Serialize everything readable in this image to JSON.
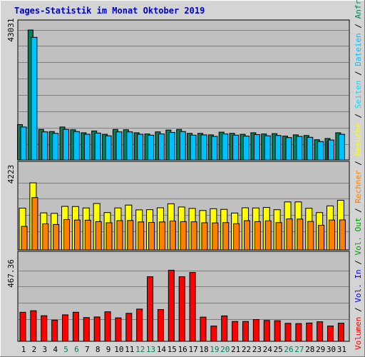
{
  "title": "Tages-Statistik im Monat Oktober 2019",
  "colors": {
    "title": "#0000c8",
    "plot_bg": "#c0c0c0",
    "grid": "#808080",
    "hits": "#00805c",
    "files": "#00c0ff",
    "pages": "#00e0ff",
    "visits": "#ffff00",
    "sites": "#ff8000",
    "kbytes": "#ff0000",
    "vol_in": "#0000ff",
    "vol_out": "#00a000",
    "weekend": "#00805c",
    "weekday": "#000000"
  },
  "chart_data": [
    {
      "type": "bar",
      "name": "hits-files-pages",
      "y_max_label": "43031",
      "ylim": [
        0,
        43031
      ],
      "x": [
        1,
        2,
        3,
        4,
        5,
        6,
        7,
        8,
        9,
        10,
        11,
        12,
        13,
        14,
        15,
        16,
        17,
        18,
        19,
        20,
        21,
        22,
        23,
        24,
        25,
        26,
        27,
        28,
        29,
        30,
        31
      ],
      "series": [
        {
          "name": "Anfragen",
          "values": [
            11700,
            43031,
            10100,
            9400,
            10900,
            10000,
            9000,
            9600,
            8500,
            10100,
            10000,
            9000,
            8600,
            9300,
            9900,
            10100,
            8800,
            8800,
            8300,
            9200,
            8800,
            8500,
            9000,
            8600,
            8700,
            7900,
            8300,
            8100,
            6700,
            7100,
            9000
          ]
        },
        {
          "name": "Dateien",
          "values": [
            10900,
            40600,
            9300,
            8800,
            10100,
            9400,
            8500,
            8900,
            8000,
            9300,
            9300,
            8500,
            8200,
            8600,
            9100,
            9400,
            8200,
            8300,
            7800,
            8600,
            8200,
            7900,
            8400,
            8000,
            8100,
            7400,
            7800,
            7500,
            6100,
            6600,
            8500
          ]
        },
        {
          "name": "Seiten",
          "values": [
            0,
            0,
            0,
            0,
            0,
            0,
            0,
            0,
            0,
            0,
            0,
            0,
            0,
            0,
            0,
            0,
            0,
            0,
            0,
            0,
            0,
            0,
            0,
            0,
            0,
            0,
            0,
            0,
            0,
            6200,
            0
          ]
        }
      ]
    },
    {
      "type": "bar",
      "name": "visits-sites",
      "y_max_label": "4223",
      "ylim": [
        0,
        4223
      ],
      "x": [
        1,
        2,
        3,
        4,
        5,
        6,
        7,
        8,
        9,
        10,
        11,
        12,
        13,
        14,
        15,
        16,
        17,
        18,
        19,
        20,
        21,
        22,
        23,
        24,
        25,
        26,
        27,
        28,
        29,
        30,
        31
      ],
      "series": [
        {
          "name": "Besuche",
          "values": [
            2630,
            4220,
            2330,
            2300,
            2740,
            2730,
            2640,
            2920,
            2350,
            2640,
            2820,
            2520,
            2530,
            2650,
            2900,
            2700,
            2610,
            2480,
            2590,
            2550,
            2320,
            2650,
            2640,
            2670,
            2530,
            3020,
            3020,
            2620,
            2350,
            2770,
            3120
          ]
        },
        {
          "name": "Rechner",
          "values": [
            1480,
            3290,
            1640,
            1600,
            1910,
            1880,
            1870,
            1780,
            1710,
            1840,
            1850,
            1760,
            1730,
            1760,
            1820,
            1780,
            1770,
            1710,
            1700,
            1720,
            1650,
            1840,
            1780,
            1830,
            1720,
            1950,
            1940,
            1790,
            1550,
            1880,
            1890
          ]
        }
      ]
    },
    {
      "type": "bar",
      "name": "kbytes",
      "y_max_label": "467.36",
      "ylim": [
        0,
        467.36
      ],
      "x": [
        1,
        2,
        3,
        4,
        5,
        6,
        7,
        8,
        9,
        10,
        11,
        12,
        13,
        14,
        15,
        16,
        17,
        18,
        19,
        20,
        21,
        22,
        23,
        24,
        25,
        26,
        27,
        28,
        29,
        30,
        31
      ],
      "series": [
        {
          "name": "Volumen",
          "values": [
            192,
            202,
            169,
            140,
            175,
            192,
            157,
            161,
            195,
            155,
            185,
            213,
            427,
            210,
            470,
            427,
            455,
            160,
            101,
            168,
            131,
            131,
            144,
            138,
            136,
            119,
            117,
            121,
            129,
            101,
            120
          ]
        }
      ]
    }
  ],
  "legend_right": [
    {
      "text": "Volumen",
      "color": "#ff0000"
    },
    {
      "text": " / ",
      "color": "#000000"
    },
    {
      "text": "Vol. In",
      "color": "#0000ff"
    },
    {
      "text": " / ",
      "color": "#000000"
    },
    {
      "text": "Vol. Out",
      "color": "#00a000"
    },
    {
      "text": " / ",
      "color": "#000000"
    },
    {
      "text": "Rechner",
      "color": "#ff8000"
    },
    {
      "text": " / ",
      "color": "#000000"
    },
    {
      "text": "Besuche",
      "color": "#ffff00"
    },
    {
      "text": " / ",
      "color": "#000000"
    },
    {
      "text": "Seiten",
      "color": "#00e0ff"
    },
    {
      "text": " / ",
      "color": "#000000"
    },
    {
      "text": "Dateien",
      "color": "#00c0ff"
    },
    {
      "text": " / ",
      "color": "#000000"
    },
    {
      "text": "Anfragen",
      "color": "#00805c"
    }
  ],
  "weekend_days": [
    5,
    6,
    12,
    13,
    19,
    20,
    26,
    27
  ]
}
